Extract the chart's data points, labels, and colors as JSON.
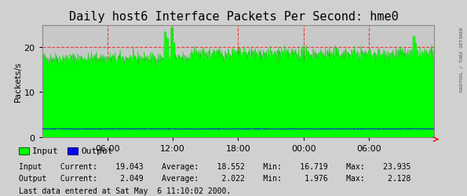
{
  "title": "Daily host6 Interface Packets Per Second: hme0",
  "ylabel": "Packets/s",
  "bg_color": "#d0d0d0",
  "plot_bg_color": "#c8c8c8",
  "input_color": "#00ff00",
  "input_line_color": "#00cc00",
  "output_color": "#0000ff",
  "grid_color": "#ff0000",
  "yticks": [
    0,
    10,
    20
  ],
  "ylim": [
    0,
    25
  ],
  "xtick_positions": [
    0.1667,
    0.3333,
    0.5,
    0.6667,
    0.8333
  ],
  "xtick_labels": [
    "06:00",
    "12:00",
    "18:00",
    "00:00",
    "06:00"
  ],
  "legend_input_label": "Input",
  "legend_output_label": "Output",
  "stats_line1": "Input    Current:    19.043    Average:    18.552    Min:    16.719    Max:    23.935",
  "stats_line2": "Output   Current:     2.049    Average:     2.022    Min:     1.976    Max:     2.128",
  "last_data": "Last data entered at Sat May  6 11:10:02 2000.",
  "right_label": "RRDTOOL / TOBI OETIKER",
  "title_fontsize": 11,
  "axis_fontsize": 8,
  "stats_fontsize": 7
}
